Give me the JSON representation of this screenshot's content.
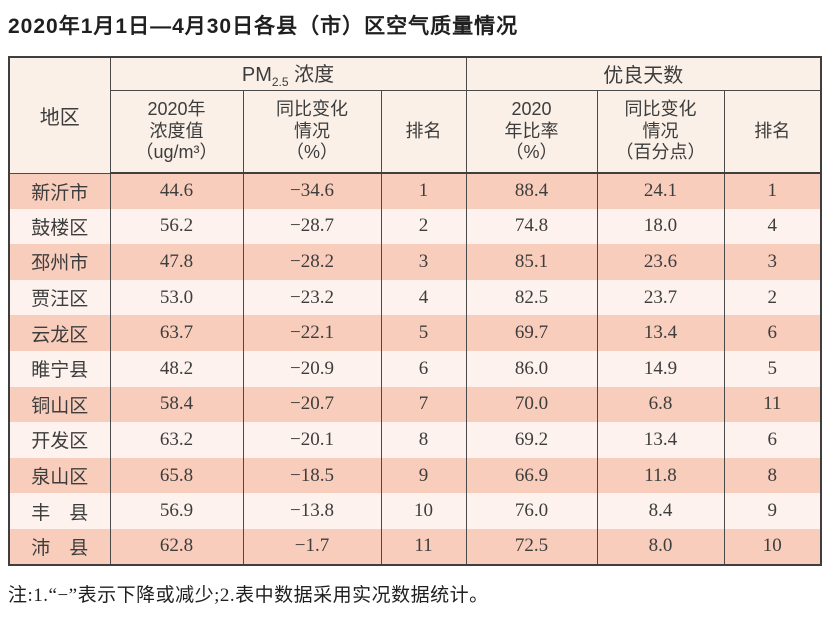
{
  "page": {
    "title": "2020年1月1日—4月30日各县（市）区空气质量情况",
    "note": "注:1.“−”表示下降或减少;2.表中数据采用实况数据统计。"
  },
  "table": {
    "header": {
      "region": "地区",
      "pm_group": {
        "prefix": "PM",
        "sub": "2.5",
        "suffix": " 浓度"
      },
      "good_days_group": "优良天数",
      "sub_headers": [
        "2020年\n浓度值\n（ug/m³）",
        "同比变化\n情况\n（%）",
        "排名",
        "2020\n年比率\n（%）",
        "同比变化\n情况\n（百分点）",
        "排名"
      ]
    },
    "rows": [
      [
        "新沂市",
        "44.6",
        "−34.6",
        "1",
        "88.4",
        "24.1",
        "1"
      ],
      [
        "鼓楼区",
        "56.2",
        "−28.7",
        "2",
        "74.8",
        "18.0",
        "4"
      ],
      [
        "邳州市",
        "47.8",
        "−28.2",
        "3",
        "85.1",
        "23.6",
        "3"
      ],
      [
        "贾汪区",
        "53.0",
        "−23.2",
        "4",
        "82.5",
        "23.7",
        "2"
      ],
      [
        "云龙区",
        "63.7",
        "−22.1",
        "5",
        "69.7",
        "13.4",
        "6"
      ],
      [
        "睢宁县",
        "48.2",
        "−20.9",
        "6",
        "86.0",
        "14.9",
        "5"
      ],
      [
        "铜山区",
        "58.4",
        "−20.7",
        "7",
        "70.0",
        "6.8",
        "11"
      ],
      [
        "开发区",
        "63.2",
        "−20.1",
        "8",
        "69.2",
        "13.4",
        "6"
      ],
      [
        "泉山区",
        "65.8",
        "−18.5",
        "9",
        "66.9",
        "11.8",
        "8"
      ],
      [
        "丰　县",
        "56.9",
        "−13.8",
        "10",
        "76.0",
        "8.4",
        "9"
      ],
      [
        "沛　县",
        "62.8",
        "−1.7",
        "11",
        "72.5",
        "8.0",
        "10"
      ]
    ],
    "colors": {
      "row_odd_bg": "#f8cdbc",
      "row_even_bg": "#fdf2ed",
      "header_bg": "#faf0e7",
      "border": "#4a4a4a"
    }
  }
}
